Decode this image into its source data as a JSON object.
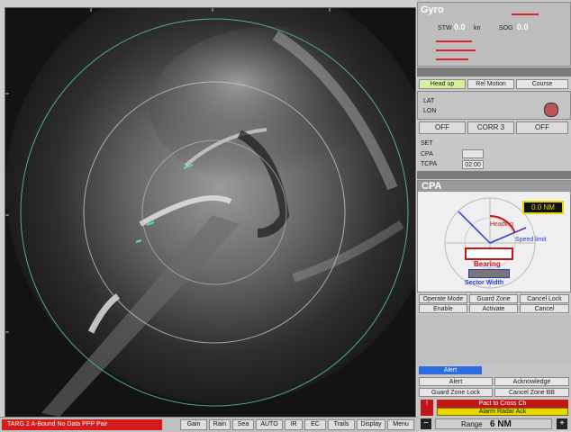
{
  "gyro": {
    "title": "Gyro",
    "stw_label": "STW",
    "stw_value": "0.0",
    "stw_unit": "kn",
    "sog_label": "SOG",
    "sog_value": "0.0"
  },
  "controls": {
    "head_up": "Head up",
    "relative_motion": "Rel Motion",
    "course": "Course",
    "lat_label": "LAT",
    "lon_label": "LON",
    "off_label": "OFF",
    "mode_label": "CORR 3",
    "trails_label": "OFF",
    "set_label": "SET",
    "cpa_label": "CPA",
    "tcpa_label": "TCPA",
    "tcpa_value": "02:00"
  },
  "cpa": {
    "title": "CPA",
    "readout": "0.0 NM",
    "bearing_label": "Bearing",
    "sector_label": "Sector Width",
    "heading_label": "Heading",
    "speed_label": "Speed limit"
  },
  "buttons": {
    "b1": "Operate Mode",
    "b2": "Guard Zone",
    "b3": "Cancel Lock",
    "b4": "Enable",
    "b5": "Activate",
    "b6": "Cancel"
  },
  "bottom_panel": {
    "blue_label": "Alert",
    "grid1": "Alert",
    "grid2": "Acknowledge",
    "grid3": "Guard Zone Lock",
    "grid4": "Cancel Zone BB",
    "warn1": "Pact to Cross Ch",
    "warn2": "Alarm Radar Ack",
    "range_label": "Range",
    "range_value": "6 NM"
  },
  "status": {
    "alarm_text": "TARG 2 A-Bound No Data PPP Pair",
    "s1": "Gain",
    "s2": "Rain",
    "s3": "Sea",
    "s4": "AUTO",
    "s5": "IR",
    "s6": "EC",
    "s7": "Trails",
    "s8": "Display",
    "s9": "Menu"
  },
  "colors": {
    "alarm_red": "#d41a1a",
    "warn_yellow": "#e5d800",
    "radar_ring": "#4fa8a6"
  }
}
